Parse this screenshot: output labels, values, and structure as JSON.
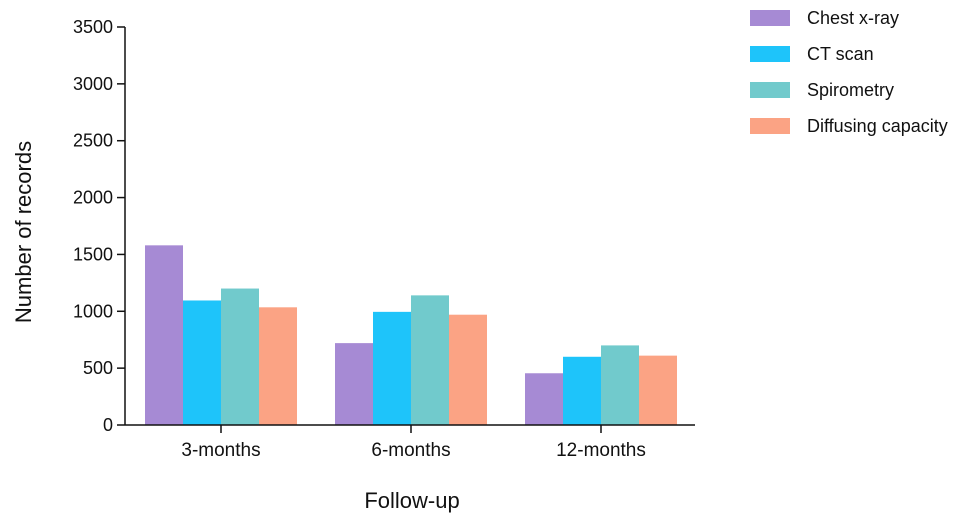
{
  "chart_data": {
    "type": "bar",
    "title": "",
    "xlabel": "Follow-up",
    "ylabel": "Number of records",
    "categories": [
      "3-months",
      "6-months",
      "12-months"
    ],
    "ylim": [
      0,
      3500
    ],
    "yticks": [
      0,
      500,
      1000,
      1500,
      2000,
      2500,
      3000,
      3500
    ],
    "grid": false,
    "legend_position": "top-right",
    "series": [
      {
        "name": "Chest x-ray",
        "color": "#A68AD4",
        "values": [
          1580,
          720,
          455
        ]
      },
      {
        "name": "CT scan",
        "color": "#1EC4FA",
        "values": [
          1095,
          995,
          600
        ]
      },
      {
        "name": "Spirometry",
        "color": "#71CACC",
        "values": [
          1200,
          1140,
          700
        ]
      },
      {
        "name": "Diffusing capacity",
        "color": "#FBA384",
        "values": [
          1035,
          970,
          610
        ]
      }
    ]
  }
}
